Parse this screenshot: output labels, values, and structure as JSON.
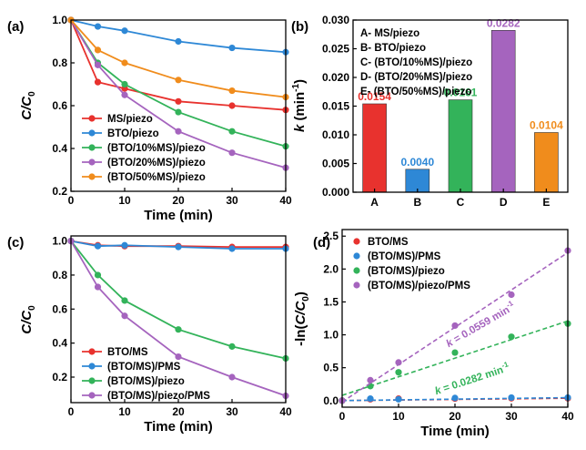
{
  "chart_data": [
    {
      "panel_label": "(a)",
      "type": "line",
      "xlabel": "Time (min)",
      "ylabel_main": "C/C",
      "ylabel_sub": "0",
      "xlim": [
        0,
        40
      ],
      "ylim": [
        0.2,
        1.0
      ],
      "xticks": [
        "0",
        "10",
        "20",
        "30",
        "40"
      ],
      "yticks": [
        "0.2",
        "0.4",
        "0.6",
        "0.8",
        "1.0"
      ],
      "x": [
        0,
        5,
        10,
        20,
        30,
        40
      ],
      "legend_position": "bottom-left",
      "series": [
        {
          "name": "MS/piezo",
          "color": "#e8322e",
          "values": [
            1.0,
            0.71,
            0.68,
            0.62,
            0.6,
            0.58
          ]
        },
        {
          "name": "BTO/piezo",
          "color": "#2e88d6",
          "values": [
            1.0,
            0.97,
            0.95,
            0.9,
            0.87,
            0.85
          ]
        },
        {
          "name": "(BTO/10%MS)/piezo",
          "color": "#33b35a",
          "values": [
            1.0,
            0.8,
            0.7,
            0.57,
            0.48,
            0.41
          ]
        },
        {
          "name": "(BTO/20%MS)/piezo",
          "color": "#a564be",
          "values": [
            1.0,
            0.79,
            0.65,
            0.48,
            0.38,
            0.31
          ]
        },
        {
          "name": "(BTO/50%MS)/piezo",
          "color": "#f08c1c",
          "values": [
            1.0,
            0.86,
            0.8,
            0.72,
            0.67,
            0.64
          ]
        }
      ]
    },
    {
      "panel_label": "(b)",
      "type": "bar",
      "ylabel_main": "k",
      "ylabel_rest": " (min",
      "ylabel_sup": "-1",
      "ylabel_end": ")",
      "ylim": [
        0,
        0.03
      ],
      "yticks": [
        "0.000",
        "0.005",
        "0.010",
        "0.015",
        "0.020",
        "0.025",
        "0.030"
      ],
      "categories": [
        "A",
        "B",
        "C",
        "D",
        "E"
      ],
      "values": [
        0.0154,
        0.004,
        0.0161,
        0.0282,
        0.0104
      ],
      "value_labels": [
        "0.0154",
        "0.0040",
        "0.0161",
        "0.0282",
        "0.0104"
      ],
      "colors": [
        "#e8322e",
        "#2e88d6",
        "#33b35a",
        "#a564be",
        "#f08c1c"
      ],
      "legend_position": "top-left",
      "legend": [
        "A- MS/piezo",
        "B- BTO/piezo",
        "C- (BTO/10%MS)/piezo",
        "D- (BTO/20%MS)/piezo",
        "E- (BTO/50%MS)/piezo"
      ]
    },
    {
      "panel_label": "(c)",
      "type": "line",
      "xlabel": "Time (min)",
      "ylabel_main": "C/C",
      "ylabel_sub": "0",
      "xlim": [
        0,
        40
      ],
      "ylim": [
        0.05,
        1.03
      ],
      "xticks": [
        "0",
        "10",
        "20",
        "30",
        "40"
      ],
      "yticks": [
        "0.2",
        "0.4",
        "0.6",
        "0.8",
        "1.0"
      ],
      "x": [
        0,
        5,
        10,
        20,
        30,
        40
      ],
      "legend_position": "bottom-left",
      "series": [
        {
          "name": "BTO/MS",
          "color": "#e8322e",
          "values": [
            1.0,
            0.975,
            0.97,
            0.97,
            0.965,
            0.965
          ]
        },
        {
          "name": "(BTO/MS)/PMS",
          "color": "#2e88d6",
          "values": [
            1.0,
            0.97,
            0.975,
            0.965,
            0.955,
            0.955
          ]
        },
        {
          "name": "(BTO/MS)/piezo",
          "color": "#33b35a",
          "values": [
            1.0,
            0.8,
            0.65,
            0.48,
            0.38,
            0.31
          ]
        },
        {
          "name": "(BTO/MS)/piezo/PMS",
          "color": "#a564be",
          "values": [
            1.0,
            0.73,
            0.56,
            0.32,
            0.2,
            0.09
          ]
        }
      ]
    },
    {
      "panel_label": "(d)",
      "type": "scatter",
      "xlabel": "Time (min)",
      "ylabel_pre": "-ln(",
      "ylabel_main": "C/C",
      "ylabel_sub": "0",
      "ylabel_end": ")",
      "xlim": [
        0,
        40
      ],
      "ylim": [
        -0.1,
        2.6
      ],
      "xticks": [
        "0",
        "10",
        "20",
        "30",
        "40"
      ],
      "yticks": [
        "0.0",
        "0.5",
        "1.0",
        "1.5",
        "2.0",
        "2.5"
      ],
      "x": [
        0,
        5,
        10,
        20,
        30,
        40
      ],
      "legend_position": "top-left",
      "series": [
        {
          "name": "BTO/MS",
          "color": "#e8322e",
          "values": [
            0,
            0.02,
            0.03,
            0.03,
            0.035,
            0.035
          ],
          "fit": [
            0.0,
            0.036
          ]
        },
        {
          "name": "(BTO/MS)/PMS",
          "color": "#2e88d6",
          "values": [
            0,
            0.03,
            0.02,
            0.04,
            0.046,
            0.046
          ],
          "fit": [
            0.0,
            0.045
          ]
        },
        {
          "name": "(BTO/MS)/piezo",
          "color": "#33b35a",
          "values": [
            0,
            0.22,
            0.43,
            0.73,
            0.97,
            1.17
          ],
          "fit": [
            0.08,
            1.21
          ]
        },
        {
          "name": "(BTO/MS)/piezo/PMS",
          "color": "#a564be",
          "values": [
            0,
            0.31,
            0.58,
            1.14,
            1.61,
            2.28
          ],
          "fit": [
            -0.02,
            2.25
          ]
        }
      ],
      "annotations": [
        {
          "k": "k",
          "text": " = 0.0559 min",
          "sup": "-1",
          "color": "#a564be"
        },
        {
          "k": "k",
          "text": " = 0.0282 min",
          "sup": "-1",
          "color": "#33b35a"
        }
      ]
    }
  ]
}
